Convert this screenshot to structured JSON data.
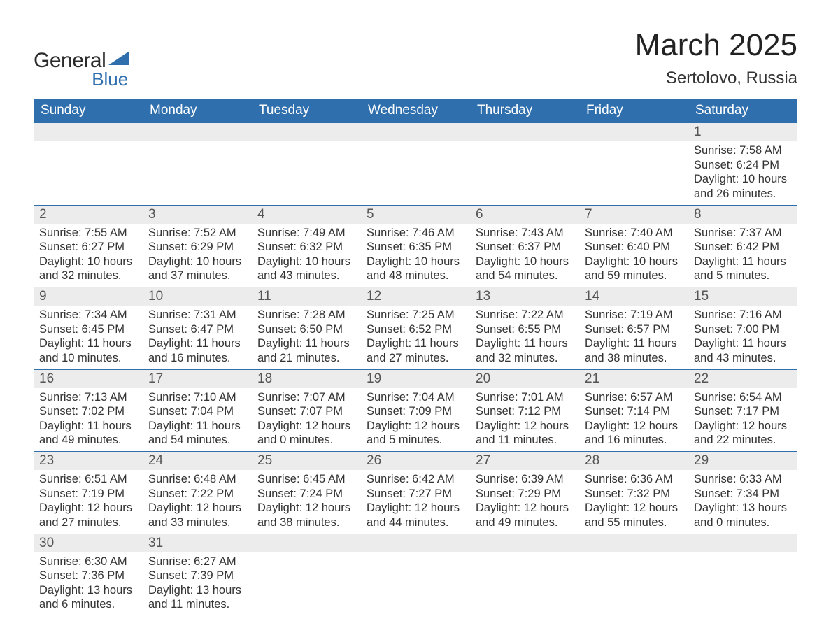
{
  "logo": {
    "text1": "General",
    "text2": "Blue",
    "shape_color": "#2f6fad"
  },
  "title": "March 2025",
  "subtitle": "Sertolovo, Russia",
  "colors": {
    "header_bg": "#2f6fad",
    "header_fg": "#ffffff",
    "daynum_bg": "#ececec",
    "border": "#2f6fad",
    "text": "#333333",
    "bg": "#ffffff"
  },
  "weekdays": [
    "Sunday",
    "Monday",
    "Tuesday",
    "Wednesday",
    "Thursday",
    "Friday",
    "Saturday"
  ],
  "weeks": [
    [
      null,
      null,
      null,
      null,
      null,
      null,
      {
        "n": "1",
        "sr": "7:58 AM",
        "ss": "6:24 PM",
        "dl": "10 hours and 26 minutes."
      }
    ],
    [
      {
        "n": "2",
        "sr": "7:55 AM",
        "ss": "6:27 PM",
        "dl": "10 hours and 32 minutes."
      },
      {
        "n": "3",
        "sr": "7:52 AM",
        "ss": "6:29 PM",
        "dl": "10 hours and 37 minutes."
      },
      {
        "n": "4",
        "sr": "7:49 AM",
        "ss": "6:32 PM",
        "dl": "10 hours and 43 minutes."
      },
      {
        "n": "5",
        "sr": "7:46 AM",
        "ss": "6:35 PM",
        "dl": "10 hours and 48 minutes."
      },
      {
        "n": "6",
        "sr": "7:43 AM",
        "ss": "6:37 PM",
        "dl": "10 hours and 54 minutes."
      },
      {
        "n": "7",
        "sr": "7:40 AM",
        "ss": "6:40 PM",
        "dl": "10 hours and 59 minutes."
      },
      {
        "n": "8",
        "sr": "7:37 AM",
        "ss": "6:42 PM",
        "dl": "11 hours and 5 minutes."
      }
    ],
    [
      {
        "n": "9",
        "sr": "7:34 AM",
        "ss": "6:45 PM",
        "dl": "11 hours and 10 minutes."
      },
      {
        "n": "10",
        "sr": "7:31 AM",
        "ss": "6:47 PM",
        "dl": "11 hours and 16 minutes."
      },
      {
        "n": "11",
        "sr": "7:28 AM",
        "ss": "6:50 PM",
        "dl": "11 hours and 21 minutes."
      },
      {
        "n": "12",
        "sr": "7:25 AM",
        "ss": "6:52 PM",
        "dl": "11 hours and 27 minutes."
      },
      {
        "n": "13",
        "sr": "7:22 AM",
        "ss": "6:55 PM",
        "dl": "11 hours and 32 minutes."
      },
      {
        "n": "14",
        "sr": "7:19 AM",
        "ss": "6:57 PM",
        "dl": "11 hours and 38 minutes."
      },
      {
        "n": "15",
        "sr": "7:16 AM",
        "ss": "7:00 PM",
        "dl": "11 hours and 43 minutes."
      }
    ],
    [
      {
        "n": "16",
        "sr": "7:13 AM",
        "ss": "7:02 PM",
        "dl": "11 hours and 49 minutes."
      },
      {
        "n": "17",
        "sr": "7:10 AM",
        "ss": "7:04 PM",
        "dl": "11 hours and 54 minutes."
      },
      {
        "n": "18",
        "sr": "7:07 AM",
        "ss": "7:07 PM",
        "dl": "12 hours and 0 minutes."
      },
      {
        "n": "19",
        "sr": "7:04 AM",
        "ss": "7:09 PM",
        "dl": "12 hours and 5 minutes."
      },
      {
        "n": "20",
        "sr": "7:01 AM",
        "ss": "7:12 PM",
        "dl": "12 hours and 11 minutes."
      },
      {
        "n": "21",
        "sr": "6:57 AM",
        "ss": "7:14 PM",
        "dl": "12 hours and 16 minutes."
      },
      {
        "n": "22",
        "sr": "6:54 AM",
        "ss": "7:17 PM",
        "dl": "12 hours and 22 minutes."
      }
    ],
    [
      {
        "n": "23",
        "sr": "6:51 AM",
        "ss": "7:19 PM",
        "dl": "12 hours and 27 minutes."
      },
      {
        "n": "24",
        "sr": "6:48 AM",
        "ss": "7:22 PM",
        "dl": "12 hours and 33 minutes."
      },
      {
        "n": "25",
        "sr": "6:45 AM",
        "ss": "7:24 PM",
        "dl": "12 hours and 38 minutes."
      },
      {
        "n": "26",
        "sr": "6:42 AM",
        "ss": "7:27 PM",
        "dl": "12 hours and 44 minutes."
      },
      {
        "n": "27",
        "sr": "6:39 AM",
        "ss": "7:29 PM",
        "dl": "12 hours and 49 minutes."
      },
      {
        "n": "28",
        "sr": "6:36 AM",
        "ss": "7:32 PM",
        "dl": "12 hours and 55 minutes."
      },
      {
        "n": "29",
        "sr": "6:33 AM",
        "ss": "7:34 PM",
        "dl": "13 hours and 0 minutes."
      }
    ],
    [
      {
        "n": "30",
        "sr": "6:30 AM",
        "ss": "7:36 PM",
        "dl": "13 hours and 6 minutes."
      },
      {
        "n": "31",
        "sr": "6:27 AM",
        "ss": "7:39 PM",
        "dl": "13 hours and 11 minutes."
      },
      null,
      null,
      null,
      null,
      null
    ]
  ],
  "labels": {
    "sunrise": "Sunrise: ",
    "sunset": "Sunset: ",
    "daylight": "Daylight: "
  }
}
